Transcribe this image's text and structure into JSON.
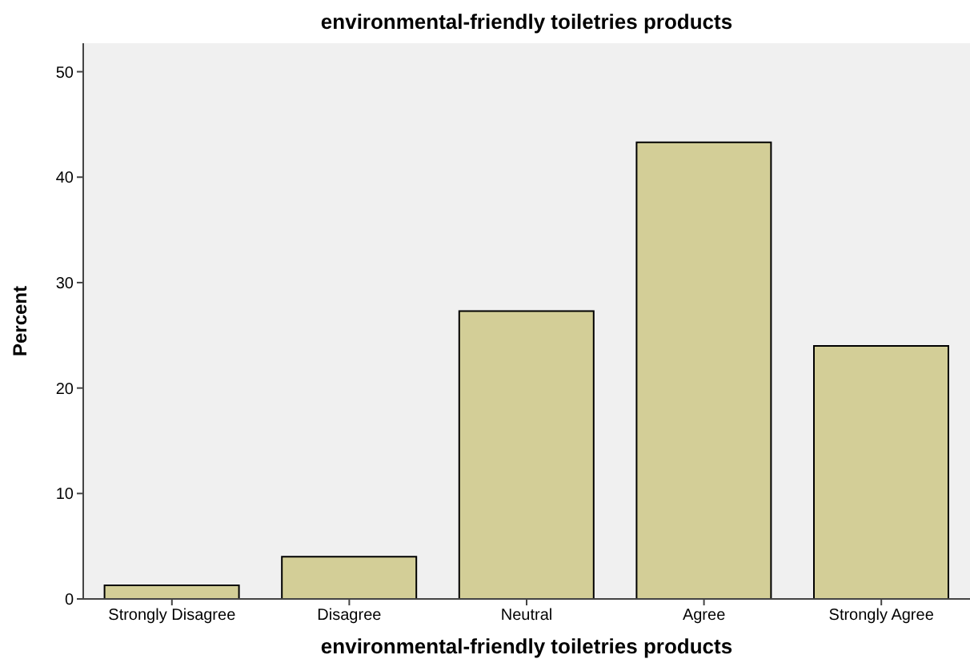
{
  "chart_data": {
    "type": "bar",
    "title": "environmental-friendly toiletries products",
    "xlabel": "environmental-friendly toiletries products",
    "ylabel": "Percent",
    "categories": [
      "Strongly Disagree",
      "Disagree",
      "Neutral",
      "Agree",
      "Strongly Agree"
    ],
    "values": [
      1.3,
      4.0,
      27.3,
      43.3,
      24.0
    ],
    "color": "#d3ce97",
    "ylim": [
      0,
      52.7
    ],
    "yticks": [
      0,
      10,
      20,
      30,
      40,
      50
    ],
    "grid": false
  }
}
